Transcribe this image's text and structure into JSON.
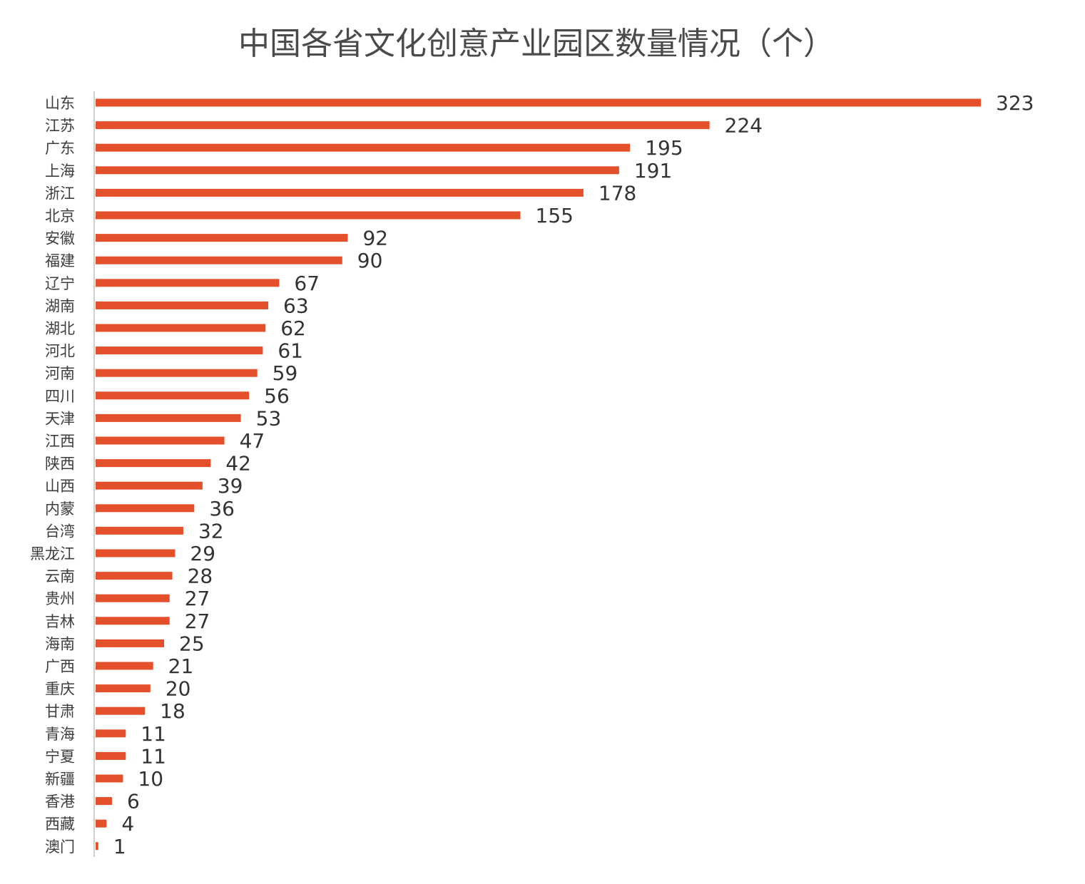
{
  "chart_data": {
    "type": "bar",
    "orientation": "horizontal",
    "title": "中国各省文化创意产业园区数量情况（个）",
    "categories": [
      "山东",
      "江苏",
      "广东",
      "上海",
      "浙江",
      "北京",
      "安徽",
      "福建",
      "辽宁",
      "湖南",
      "湖北",
      "河北",
      "河南",
      "四川",
      "天津",
      "江西",
      "陕西",
      "山西",
      "内蒙",
      "台湾",
      "黑龙江",
      "云南",
      "贵州",
      "吉林",
      "海南",
      "广西",
      "重庆",
      "甘肃",
      "青海",
      "宁夏",
      "新疆",
      "香港",
      "西藏",
      "澳门"
    ],
    "values": [
      323,
      224,
      195,
      191,
      178,
      155,
      92,
      90,
      67,
      63,
      62,
      61,
      59,
      56,
      53,
      47,
      42,
      39,
      36,
      32,
      29,
      28,
      27,
      27,
      25,
      21,
      20,
      18,
      11,
      11,
      10,
      6,
      4,
      1
    ],
    "value_labels": [
      "323",
      "224",
      "195",
      "191",
      "178",
      "155",
      "92",
      "90",
      "67",
      "63",
      "62",
      "61",
      "59",
      "56",
      "53",
      "47",
      "42",
      "39",
      "36",
      "32",
      "29",
      "28",
      "27",
      "27",
      "25",
      "21",
      "20",
      "18",
      "11",
      "11",
      "10",
      "6",
      "4",
      "1"
    ],
    "xlim": [
      0,
      323
    ],
    "grid": false,
    "legend": "none",
    "colors": {
      "bar": "#e4502b",
      "axis": "#d0d0d0",
      "title": "#4a4a4a",
      "label": "#3d3d3d",
      "value": "#333333"
    }
  }
}
